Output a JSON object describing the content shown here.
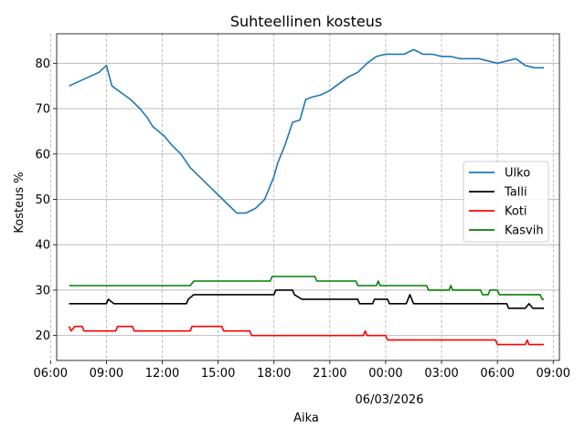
{
  "chart_data": {
    "type": "line",
    "title": "Suhteellinen kosteus",
    "xlabel": "Aika",
    "ylabel": "Kosteus %",
    "x_range_hours": [
      6.33,
      33.33
    ],
    "ylim": [
      14.5,
      86.5
    ],
    "x_ticks": [
      {
        "h": 6,
        "label": "06:00"
      },
      {
        "h": 9,
        "label": "09:00"
      },
      {
        "h": 12,
        "label": "12:00"
      },
      {
        "h": 15,
        "label": "15:00"
      },
      {
        "h": 18,
        "label": "18:00"
      },
      {
        "h": 21,
        "label": "21:00"
      },
      {
        "h": 24,
        "label": "00:00"
      },
      {
        "h": 27,
        "label": "03:00"
      },
      {
        "h": 30,
        "label": "06:00"
      },
      {
        "h": 33,
        "label": "09:00"
      }
    ],
    "date_label": "06/03/2026",
    "y_ticks": [
      20,
      30,
      40,
      50,
      60,
      70,
      80
    ],
    "grid": true,
    "legend_position": "center-right",
    "series": [
      {
        "name": "Ulko",
        "color": "#1f77b4",
        "points": [
          [
            7,
            75
          ],
          [
            8.6,
            78
          ],
          [
            9,
            79.5
          ],
          [
            9.3,
            75
          ],
          [
            10.3,
            72
          ],
          [
            10.8,
            70
          ],
          [
            11.2,
            68
          ],
          [
            11.5,
            66
          ],
          [
            12.1,
            64
          ],
          [
            12.5,
            62
          ],
          [
            13,
            60
          ],
          [
            13.5,
            57
          ],
          [
            14,
            55
          ],
          [
            14.5,
            53
          ],
          [
            15,
            51
          ],
          [
            15.5,
            49
          ],
          [
            16,
            47
          ],
          [
            16.5,
            47
          ],
          [
            17,
            48
          ],
          [
            17.5,
            50
          ],
          [
            18,
            55
          ],
          [
            18.2,
            58
          ],
          [
            18.6,
            62
          ],
          [
            19,
            67
          ],
          [
            19.4,
            67.5
          ],
          [
            19.7,
            72
          ],
          [
            20,
            72.5
          ],
          [
            20.5,
            73
          ],
          [
            21,
            74
          ],
          [
            21.5,
            75.5
          ],
          [
            22,
            77
          ],
          [
            22.5,
            78
          ],
          [
            23,
            80
          ],
          [
            23.5,
            81.5
          ],
          [
            24,
            82
          ],
          [
            24.5,
            82
          ],
          [
            25,
            82
          ],
          [
            25.5,
            83
          ],
          [
            26,
            82
          ],
          [
            26.5,
            82
          ],
          [
            27,
            81.5
          ],
          [
            27.5,
            81.5
          ],
          [
            28,
            81
          ],
          [
            28.5,
            81
          ],
          [
            29,
            81
          ],
          [
            29.5,
            80.5
          ],
          [
            30,
            80
          ],
          [
            30.5,
            80.5
          ],
          [
            31,
            81
          ],
          [
            31.5,
            79.5
          ],
          [
            32,
            79
          ],
          [
            32.5,
            79
          ]
        ]
      },
      {
        "name": "Talli",
        "color": "#000000",
        "points": [
          [
            7,
            27
          ],
          [
            9,
            27
          ],
          [
            9.1,
            28
          ],
          [
            9.4,
            27
          ],
          [
            13.3,
            27
          ],
          [
            13.4,
            28
          ],
          [
            13.7,
            29
          ],
          [
            18,
            29
          ],
          [
            18.1,
            30
          ],
          [
            19,
            30
          ],
          [
            19.1,
            29
          ],
          [
            19.5,
            28
          ],
          [
            20,
            28
          ],
          [
            22.5,
            28
          ],
          [
            22.6,
            27
          ],
          [
            23.3,
            27
          ],
          [
            23.4,
            28
          ],
          [
            24.1,
            28
          ],
          [
            24.2,
            27
          ],
          [
            25.1,
            27
          ],
          [
            25.3,
            29
          ],
          [
            25.5,
            27
          ],
          [
            30.5,
            27
          ],
          [
            30.6,
            26
          ],
          [
            31.5,
            26
          ],
          [
            31.7,
            27
          ],
          [
            31.9,
            26
          ],
          [
            32.5,
            26
          ]
        ]
      },
      {
        "name": "Koti",
        "color": "#ff0000",
        "points": [
          [
            7,
            22
          ],
          [
            7.1,
            21
          ],
          [
            7.3,
            22
          ],
          [
            7.7,
            22
          ],
          [
            7.8,
            21
          ],
          [
            9.5,
            21
          ],
          [
            9.6,
            22
          ],
          [
            10.4,
            22
          ],
          [
            10.5,
            21
          ],
          [
            13.5,
            21
          ],
          [
            13.6,
            22
          ],
          [
            15.2,
            22
          ],
          [
            15.3,
            21
          ],
          [
            16.7,
            21
          ],
          [
            16.8,
            20
          ],
          [
            22.8,
            20
          ],
          [
            22.9,
            21
          ],
          [
            23,
            20
          ],
          [
            24,
            20
          ],
          [
            24.1,
            19
          ],
          [
            29.9,
            19
          ],
          [
            30,
            18
          ],
          [
            31.5,
            18
          ],
          [
            31.6,
            19
          ],
          [
            31.7,
            18
          ],
          [
            32.5,
            18
          ]
        ]
      },
      {
        "name": "Kasvih",
        "color": "#008000",
        "points": [
          [
            7,
            31
          ],
          [
            13.5,
            31
          ],
          [
            13.7,
            32
          ],
          [
            17.8,
            32
          ],
          [
            17.9,
            33
          ],
          [
            20.2,
            33
          ],
          [
            20.3,
            32
          ],
          [
            22.4,
            32
          ],
          [
            22.5,
            31
          ],
          [
            23.5,
            31
          ],
          [
            23.6,
            32
          ],
          [
            23.7,
            31
          ],
          [
            26.2,
            31
          ],
          [
            26.3,
            30
          ],
          [
            27.4,
            30
          ],
          [
            27.5,
            31
          ],
          [
            27.6,
            30
          ],
          [
            29.1,
            30
          ],
          [
            29.2,
            29
          ],
          [
            29.5,
            29
          ],
          [
            29.6,
            30
          ],
          [
            30,
            30
          ],
          [
            30.1,
            29
          ],
          [
            32.3,
            29
          ],
          [
            32.4,
            28
          ],
          [
            32.5,
            28
          ]
        ]
      }
    ]
  }
}
